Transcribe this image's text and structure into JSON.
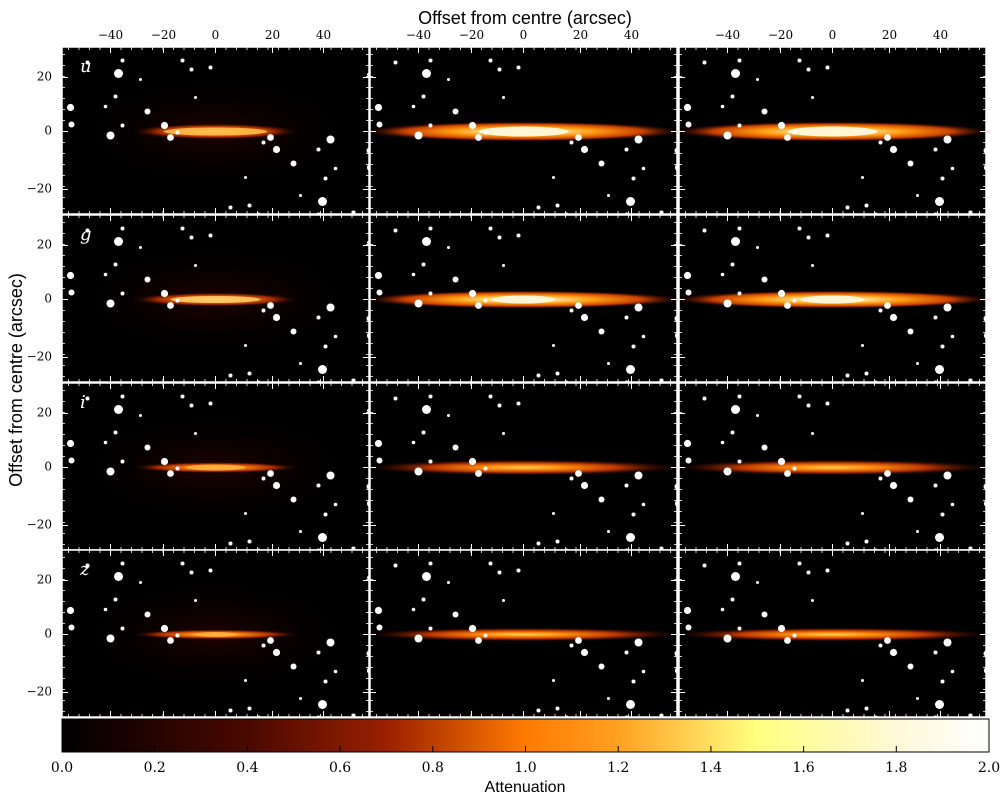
{
  "figure": {
    "top_axis_label": "Offset from centre (arcsec)",
    "left_axis_label": "Offset from centre (arcsec)",
    "x_tick_labels": [
      "−40",
      "−20",
      "0",
      "20",
      "40"
    ],
    "y_tick_labels": [
      "20",
      "0",
      "−20"
    ],
    "band_labels": [
      "u",
      "g",
      "i",
      "z"
    ],
    "columns": 3,
    "colorbar": {
      "label": "Attenuation",
      "tick_labels": [
        "0.0",
        "0.2",
        "0.4",
        "0.6",
        "0.8",
        "1.0",
        "1.2",
        "1.4",
        "1.6",
        "1.8",
        "2.0"
      ],
      "min": 0.0,
      "max": 2.0
    },
    "colors": {
      "background": "#000000",
      "low": "#6a1200",
      "mid": "#ff7a00",
      "high": "#ffff80",
      "top": "#ffffff",
      "axes": "#ffffff"
    }
  }
}
